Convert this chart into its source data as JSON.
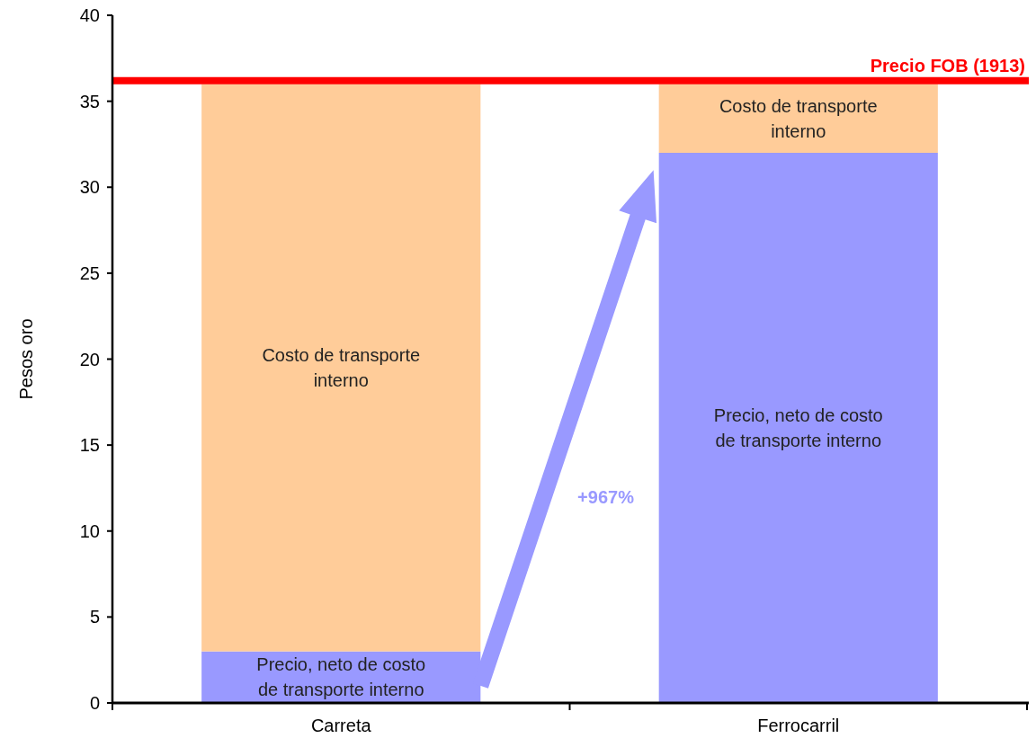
{
  "chart_data": {
    "type": "bar",
    "stacked": true,
    "ylabel": "Pesos oro",
    "categories": [
      "Carreta",
      "Ferrocarril"
    ],
    "series": [
      {
        "name": "Precio, neto de costo de transporte interno",
        "color": "#9999ff",
        "values": [
          3,
          32
        ]
      },
      {
        "name": "Costo de transporte interno",
        "color": "#ffcc99",
        "values": [
          33,
          4
        ]
      }
    ],
    "ylim": [
      0,
      40
    ],
    "yticks": [
      0,
      5,
      10,
      15,
      20,
      25,
      30,
      35,
      40
    ],
    "ref_lines": [
      {
        "axis": "y",
        "value": 36.2,
        "label": "Precio FOB (1913)",
        "color": "#ff0000"
      }
    ],
    "annotations": [
      "+967%"
    ],
    "grid": false
  }
}
